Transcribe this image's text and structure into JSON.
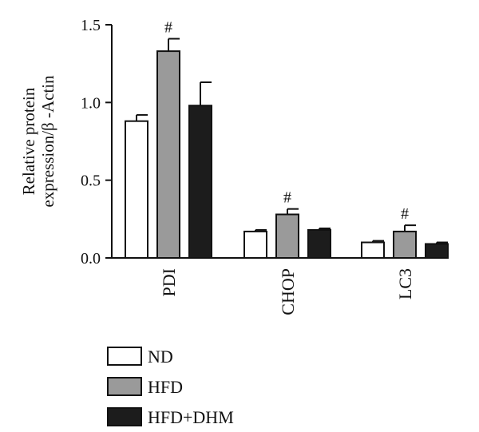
{
  "chart_data": {
    "type": "bar",
    "categories": [
      "PDI",
      "CHOP",
      "LC3"
    ],
    "series": [
      {
        "name": "ND",
        "values": [
          0.88,
          0.17,
          0.1
        ],
        "errors": [
          0.04,
          0.01,
          0.01
        ],
        "color": "#ffffff"
      },
      {
        "name": "HFD",
        "values": [
          1.33,
          0.28,
          0.17
        ],
        "errors": [
          0.08,
          0.035,
          0.04
        ],
        "color": "#9a9a9a"
      },
      {
        "name": "HFD+DHM",
        "values": [
          0.98,
          0.18,
          0.09
        ],
        "errors": [
          0.15,
          0.01,
          0.01
        ],
        "color": "#1c1c1c"
      }
    ],
    "significance": [
      {
        "category": "PDI",
        "series": "HFD",
        "label": "#"
      },
      {
        "category": "CHOP",
        "series": "HFD",
        "label": "#"
      },
      {
        "category": "LC3",
        "series": "HFD",
        "label": "#"
      }
    ],
    "ylabel_line1": "Relative protein",
    "ylabel_line2": "expression/β -Actin",
    "xlabel": "",
    "ylim": [
      0,
      1.5
    ],
    "yticks": [
      "0.0",
      "0.5",
      "1.0",
      "1.5"
    ],
    "grid": false,
    "legend_position": "bottom-left"
  }
}
